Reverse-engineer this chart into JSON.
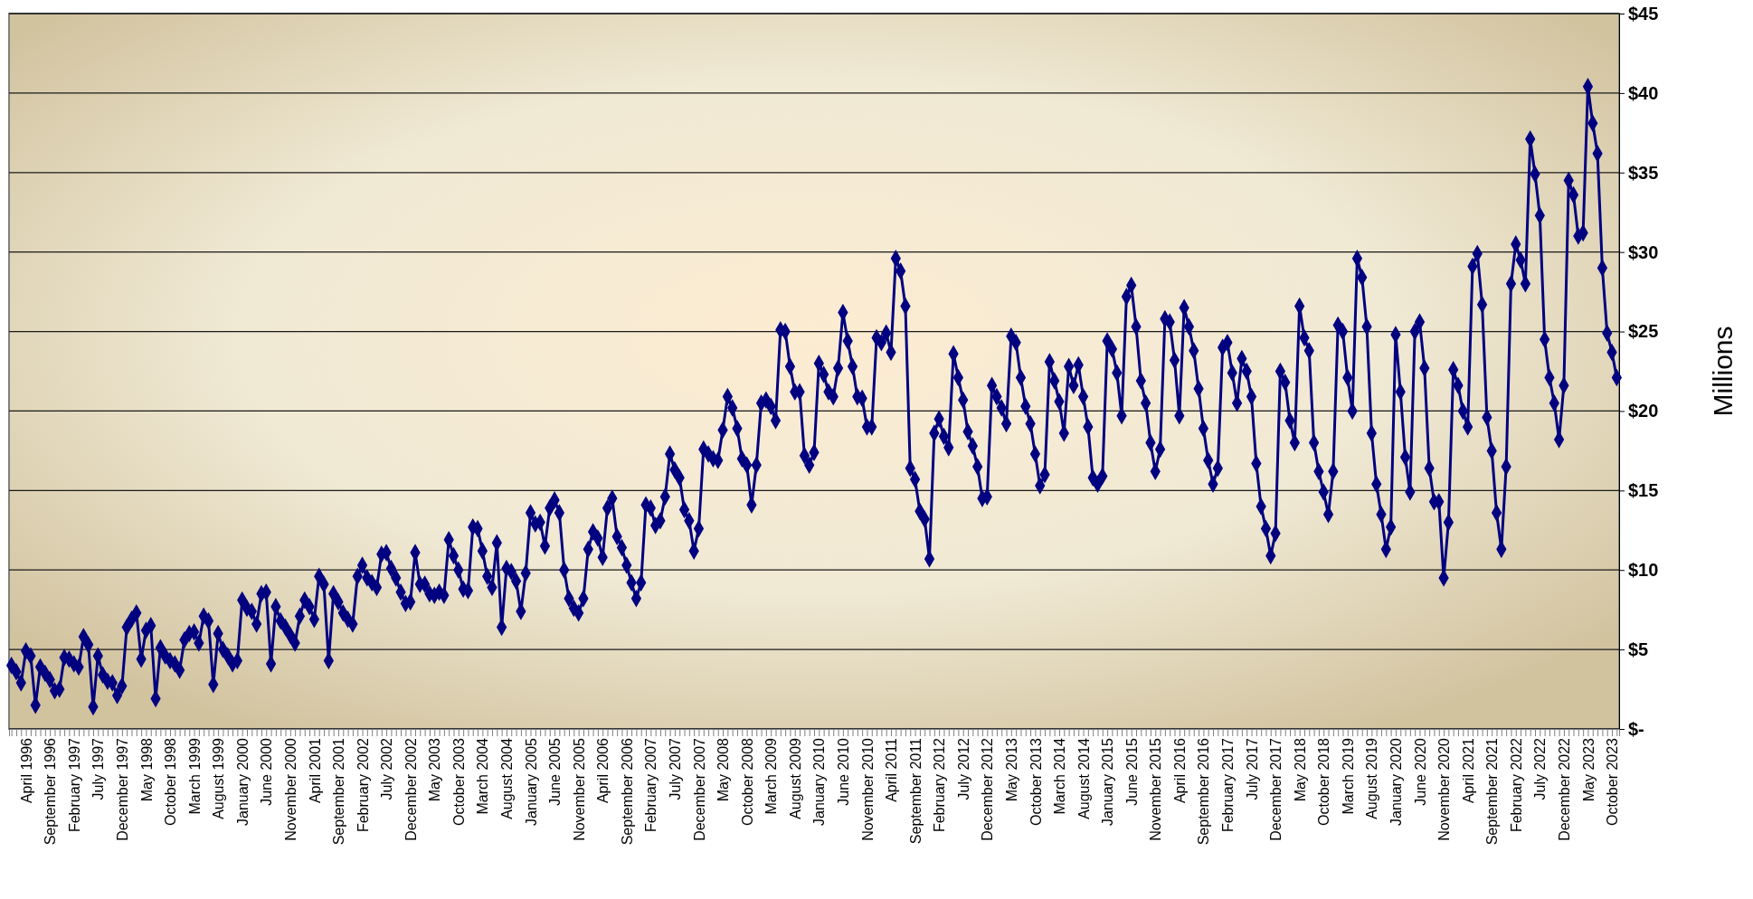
{
  "chart_data": {
    "type": "line",
    "ylabel": "Millions",
    "categories": [
      null,
      null,
      null,
      "April 1996",
      null,
      null,
      null,
      null,
      "September 1996",
      null,
      null,
      null,
      null,
      "February 1997",
      null,
      null,
      null,
      null,
      "July 1997",
      null,
      null,
      null,
      null,
      "December 1997",
      null,
      null,
      null,
      null,
      "May 1998",
      null,
      null,
      null,
      null,
      "October 1998",
      null,
      null,
      null,
      null,
      "March 1999",
      null,
      null,
      null,
      null,
      "August 1999",
      null,
      null,
      null,
      null,
      "January 2000",
      null,
      null,
      null,
      null,
      "June 2000",
      null,
      null,
      null,
      null,
      "November 2000",
      null,
      null,
      null,
      null,
      "April 2001",
      null,
      null,
      null,
      null,
      "September 2001",
      null,
      null,
      null,
      null,
      "February 2002",
      null,
      null,
      null,
      null,
      "July 2002",
      null,
      null,
      null,
      null,
      "December 2002",
      null,
      null,
      null,
      null,
      "May 2003",
      null,
      null,
      null,
      null,
      "October 2003",
      null,
      null,
      null,
      null,
      "March 2004",
      null,
      null,
      null,
      null,
      "August 2004",
      null,
      null,
      null,
      null,
      "January 2005",
      null,
      null,
      null,
      null,
      "June 2005",
      null,
      null,
      null,
      null,
      "November 2005",
      null,
      null,
      null,
      null,
      "April 2006",
      null,
      null,
      null,
      null,
      "September 2006",
      null,
      null,
      null,
      null,
      "February 2007",
      null,
      null,
      null,
      null,
      "July 2007",
      null,
      null,
      null,
      null,
      "December 2007",
      null,
      null,
      null,
      null,
      "May 2008",
      null,
      null,
      null,
      null,
      "October 2008",
      null,
      null,
      null,
      null,
      "March 2009",
      null,
      null,
      null,
      null,
      "August 2009",
      null,
      null,
      null,
      null,
      "January 2010",
      null,
      null,
      null,
      null,
      "June 2010",
      null,
      null,
      null,
      null,
      "November 2010",
      null,
      null,
      null,
      null,
      "April 2011",
      null,
      null,
      null,
      null,
      "September 2011",
      null,
      null,
      null,
      null,
      "February 2012",
      null,
      null,
      null,
      null,
      "July 2012",
      null,
      null,
      null,
      null,
      "December 2012",
      null,
      null,
      null,
      null,
      "May 2013",
      null,
      null,
      null,
      null,
      "October 2013",
      null,
      null,
      null,
      null,
      "March 2014",
      null,
      null,
      null,
      null,
      "August 2014",
      null,
      null,
      null,
      null,
      "January 2015",
      null,
      null,
      null,
      null,
      "June 2015",
      null,
      null,
      null,
      null,
      "November 2015",
      null,
      null,
      null,
      null,
      "April 2016",
      null,
      null,
      null,
      null,
      "September 2016",
      null,
      null,
      null,
      null,
      "February 2017",
      null,
      null,
      null,
      null,
      "July 2017",
      null,
      null,
      null,
      null,
      "December 2017",
      null,
      null,
      null,
      null,
      "May 2018",
      null,
      null,
      null,
      null,
      "October 2018",
      null,
      null,
      null,
      null,
      "March 2019",
      null,
      null,
      null,
      null,
      "August 2019",
      null,
      null,
      null,
      null,
      "January 2020",
      null,
      null,
      null,
      null,
      "June 2020",
      null,
      null,
      null,
      null,
      "November 2020",
      null,
      null,
      null,
      null,
      "April 2021",
      null,
      null,
      null,
      null,
      "September 2021",
      null,
      null,
      null,
      null,
      "February 2022",
      null,
      null,
      null,
      null,
      "July 2022",
      null,
      null,
      null,
      null,
      "December 2022",
      null,
      null,
      null,
      null,
      "May 2023",
      null,
      null,
      null,
      null,
      "October 2023",
      null
    ],
    "series": [
      {
        "color": "#000080",
        "values": [
          4.0,
          3.6,
          2.9,
          4.9,
          4.6,
          1.5,
          3.9,
          3.5,
          3.1,
          2.4,
          2.5,
          4.5,
          4.4,
          4.1,
          3.9,
          5.8,
          5.3,
          1.4,
          4.6,
          3.4,
          3.0,
          2.9,
          2.1,
          2.7,
          6.4,
          6.9,
          7.3,
          4.4,
          6.2,
          6.5,
          1.9,
          5.1,
          4.6,
          4.3,
          4.1,
          3.7,
          5.6,
          6.0,
          6.1,
          5.4,
          7.1,
          6.8,
          2.8,
          6.0,
          5.0,
          4.6,
          4.1,
          4.3,
          8.1,
          7.6,
          7.4,
          6.6,
          8.5,
          8.6,
          4.1,
          7.7,
          6.8,
          6.4,
          5.9,
          5.4,
          7.1,
          8.1,
          7.7,
          6.9,
          9.6,
          9.1,
          4.3,
          8.5,
          8.0,
          7.3,
          6.9,
          6.6,
          9.6,
          10.3,
          9.5,
          9.2,
          8.9,
          11.0,
          11.1,
          10.1,
          9.5,
          8.6,
          7.9,
          8.0,
          11.1,
          9.1,
          9.1,
          8.5,
          8.4,
          8.6,
          8.4,
          11.9,
          10.9,
          10.0,
          8.8,
          8.7,
          12.7,
          12.6,
          11.2,
          9.6,
          8.9,
          11.7,
          6.4,
          10.1,
          9.9,
          9.3,
          7.4,
          9.8,
          13.6,
          12.9,
          13.0,
          11.5,
          13.9,
          14.4,
          13.6,
          10.0,
          8.2,
          7.6,
          7.3,
          8.2,
          11.3,
          12.4,
          12.0,
          10.8,
          13.9,
          14.5,
          12.1,
          11.4,
          10.3,
          9.2,
          8.2,
          9.2,
          14.1,
          13.9,
          12.8,
          13.1,
          14.6,
          17.3,
          16.3,
          15.8,
          13.8,
          13.1,
          11.2,
          12.6,
          17.6,
          17.3,
          17.0,
          16.9,
          18.8,
          20.9,
          20.2,
          18.9,
          17.0,
          16.6,
          14.1,
          16.6,
          20.5,
          20.7,
          20.3,
          19.4,
          25.1,
          25.0,
          22.8,
          21.2,
          21.2,
          17.2,
          16.6,
          17.4,
          23.0,
          22.3,
          21.2,
          20.9,
          22.7,
          26.2,
          24.4,
          22.8,
          20.9,
          20.8,
          19.0,
          19.0,
          24.6,
          24.3,
          24.9,
          23.7,
          29.6,
          28.8,
          26.6,
          16.4,
          15.7,
          13.7,
          13.2,
          10.7,
          18.6,
          19.5,
          18.4,
          17.7,
          23.6,
          22.1,
          20.7,
          18.7,
          17.8,
          16.5,
          14.5,
          14.6,
          21.6,
          20.9,
          20.2,
          19.2,
          24.7,
          24.3,
          22.1,
          20.3,
          19.2,
          17.3,
          15.3,
          16.0,
          23.1,
          21.9,
          20.6,
          18.6,
          22.8,
          21.6,
          22.9,
          20.9,
          19.0,
          15.8,
          15.4,
          15.9,
          24.4,
          23.9,
          22.4,
          19.7,
          27.2,
          27.9,
          25.3,
          21.9,
          20.5,
          18.0,
          16.2,
          17.6,
          25.8,
          25.6,
          23.2,
          19.7,
          26.5,
          25.3,
          23.8,
          21.4,
          18.9,
          16.9,
          15.4,
          16.4,
          24.0,
          24.3,
          22.4,
          20.5,
          23.3,
          22.5,
          20.9,
          16.7,
          14.0,
          12.6,
          10.9,
          12.3,
          22.5,
          21.8,
          19.4,
          18.0,
          26.6,
          24.6,
          23.8,
          18.0,
          16.2,
          14.9,
          13.5,
          16.2,
          25.4,
          25.0,
          22.1,
          20.0,
          29.6,
          28.4,
          25.3,
          18.6,
          15.4,
          13.5,
          11.3,
          12.7,
          24.8,
          21.2,
          17.1,
          14.9,
          25.0,
          25.6,
          22.7,
          16.4,
          14.3,
          14.3,
          9.5,
          13.0,
          22.6,
          21.6,
          20.0,
          19.0,
          29.1,
          29.9,
          26.7,
          19.6,
          17.5,
          13.6,
          11.3,
          16.5,
          28.0,
          30.5,
          29.5,
          28.0,
          37.1,
          34.9,
          32.3,
          24.5,
          22.1,
          20.5,
          18.2,
          21.6,
          34.5,
          33.6,
          31.0,
          31.2,
          40.4,
          38.1,
          36.2,
          29.0,
          24.9,
          23.7,
          22.1
        ]
      }
    ],
    "ylim": [
      0,
      45
    ],
    "yticks": [
      {
        "value": 0,
        "label": "$-"
      },
      {
        "value": 5,
        "label": "$5"
      },
      {
        "value": 10,
        "label": "$10"
      },
      {
        "value": 15,
        "label": "$15"
      },
      {
        "value": 20,
        "label": "$20"
      },
      {
        "value": 25,
        "label": "$25"
      },
      {
        "value": 30,
        "label": "$30"
      },
      {
        "value": 35,
        "label": "$35"
      },
      {
        "value": 40,
        "label": "$40"
      },
      {
        "value": 45,
        "label": "$45"
      }
    ],
    "grid": "y",
    "marker": "diamond",
    "line_style": "solid"
  }
}
